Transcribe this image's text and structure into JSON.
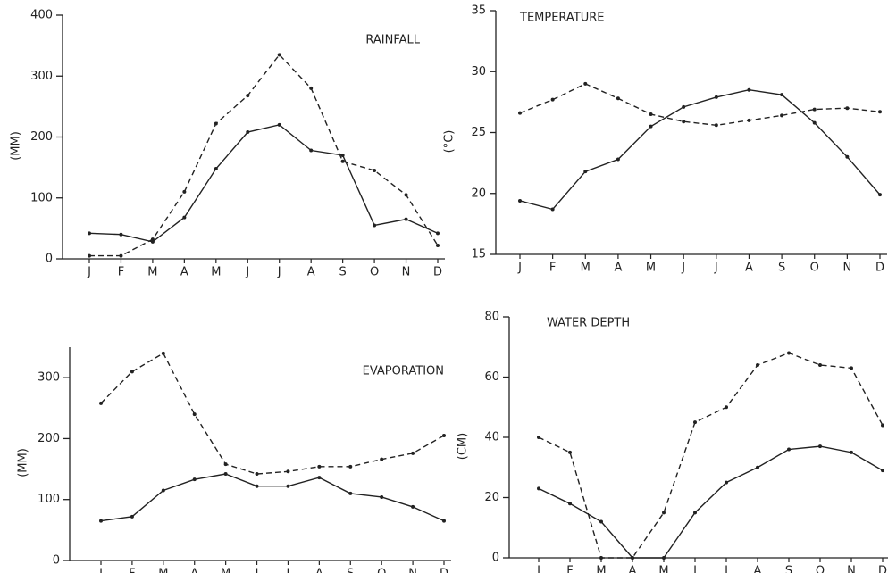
{
  "chart_data": [
    {
      "type": "line",
      "title": "RAINFALL",
      "y_label": "(MM)",
      "categories": [
        "J",
        "F",
        "M",
        "A",
        "M",
        "J",
        "J",
        "A",
        "S",
        "O",
        "N",
        "D"
      ],
      "ylim": [
        0,
        400
      ],
      "yticks": [
        0,
        100,
        200,
        300,
        400
      ],
      "series": [
        {
          "color": "#222222",
          "style": "solid",
          "values": [
            42,
            40,
            28,
            68,
            148,
            208,
            220,
            178,
            170,
            55,
            65,
            42
          ]
        },
        {
          "color": "#222222",
          "style": "dashed",
          "values": [
            5,
            5,
            32,
            110,
            222,
            268,
            335,
            280,
            160,
            145,
            105,
            22
          ]
        }
      ]
    },
    {
      "type": "line",
      "title": "TEMPERATURE",
      "y_label": "(°C)",
      "categories": [
        "J",
        "F",
        "M",
        "A",
        "M",
        "J",
        "J",
        "A",
        "S",
        "O",
        "N",
        "D"
      ],
      "ylim": [
        15,
        35
      ],
      "yticks": [
        15,
        20,
        25,
        30,
        35
      ],
      "series": [
        {
          "color": "#222222",
          "style": "solid",
          "values": [
            19.4,
            18.7,
            21.8,
            22.8,
            25.5,
            27.1,
            27.9,
            28.5,
            28.1,
            25.8,
            23,
            19.9
          ]
        },
        {
          "color": "#222222",
          "style": "dashed",
          "values": [
            26.6,
            27.7,
            29,
            27.8,
            26.5,
            25.9,
            25.6,
            26,
            26.4,
            26.9,
            27,
            26.7
          ]
        }
      ]
    },
    {
      "type": "line",
      "title": "EVAPORATION",
      "y_label": "(MM)",
      "categories": [
        "J",
        "F",
        "M",
        "A",
        "M",
        "J",
        "J",
        "A",
        "S",
        "O",
        "N",
        "D"
      ],
      "ylim": [
        0,
        350
      ],
      "yticks": [
        0,
        100,
        200,
        300
      ],
      "series": [
        {
          "color": "#222222",
          "style": "solid",
          "values": [
            65,
            72,
            115,
            133,
            142,
            122,
            122,
            136,
            110,
            104,
            88,
            65
          ]
        },
        {
          "color": "#222222",
          "style": "dashed",
          "values": [
            258,
            310,
            340,
            240,
            158,
            142,
            146,
            154,
            154,
            166,
            176,
            205
          ]
        }
      ]
    },
    {
      "type": "line",
      "title": "WATER DEPTH",
      "y_label": "(CM)",
      "categories": [
        "J",
        "F",
        "M",
        "A",
        "M",
        "J",
        "J",
        "A",
        "S",
        "O",
        "N",
        "D"
      ],
      "ylim": [
        0,
        80
      ],
      "yticks": [
        0,
        20,
        40,
        60,
        80
      ],
      "series": [
        {
          "color": "#222222",
          "style": "solid",
          "values": [
            23,
            18,
            12,
            0,
            0,
            15,
            25,
            30,
            36,
            37,
            35,
            29
          ]
        },
        {
          "color": "#222222",
          "style": "dashed",
          "values": [
            40,
            35,
            0,
            0,
            15,
            45,
            50,
            64,
            68,
            64,
            63,
            44
          ]
        }
      ]
    }
  ]
}
